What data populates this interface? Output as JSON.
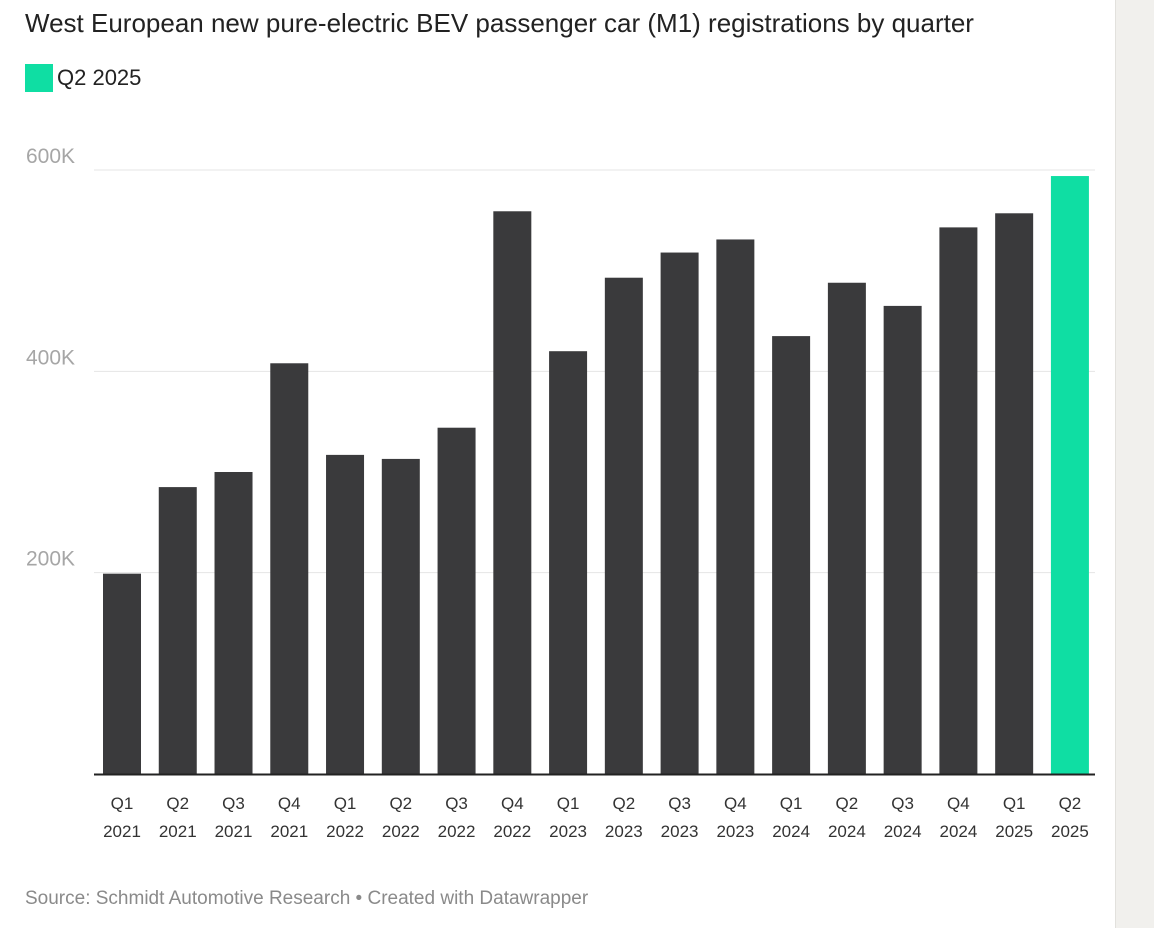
{
  "chart_data": {
    "type": "bar",
    "title": "West European new pure-electric BEV passenger car (M1) registrations by quarter",
    "legend": {
      "label": "Q2 2025",
      "color": "#0fdea3",
      "placement": "top-left"
    },
    "categories": [
      [
        "Q1",
        "2021"
      ],
      [
        "Q2",
        "2021"
      ],
      [
        "Q3",
        "2021"
      ],
      [
        "Q4",
        "2021"
      ],
      [
        "Q1",
        "2022"
      ],
      [
        "Q2",
        "2022"
      ],
      [
        "Q3",
        "2022"
      ],
      [
        "Q4",
        "2022"
      ],
      [
        "Q1",
        "2023"
      ],
      [
        "Q2",
        "2023"
      ],
      [
        "Q3",
        "2023"
      ],
      [
        "Q4",
        "2023"
      ],
      [
        "Q1",
        "2024"
      ],
      [
        "Q2",
        "2024"
      ],
      [
        "Q3",
        "2024"
      ],
      [
        "Q4",
        "2024"
      ],
      [
        "Q1",
        "2025"
      ],
      [
        "Q2",
        "2025"
      ]
    ],
    "values": [
      199000,
      285000,
      300000,
      408000,
      317000,
      313000,
      344000,
      559000,
      420000,
      493000,
      518000,
      531000,
      435000,
      488000,
      465000,
      543000,
      557000,
      594000
    ],
    "highlight_index": 17,
    "bar_color": "#3a3a3c",
    "highlight_color": "#0fdea3",
    "ylim": [
      0,
      600000
    ],
    "yticks": [
      {
        "value": 200000,
        "label": "200K"
      },
      {
        "value": 400000,
        "label": "400K"
      },
      {
        "value": 600000,
        "label": "600K"
      }
    ],
    "grid": true,
    "source": "Source: Schmidt Automotive Research • Created with Datawrapper"
  }
}
